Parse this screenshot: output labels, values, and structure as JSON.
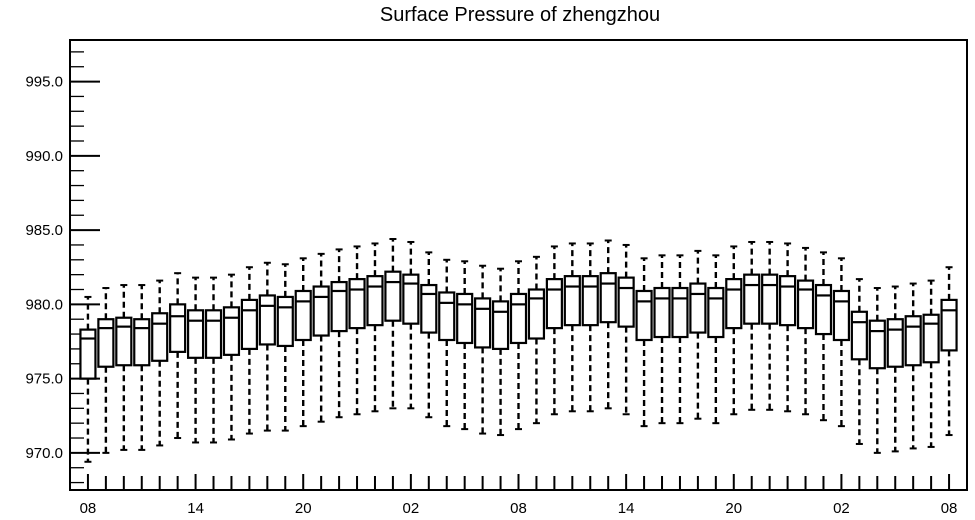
{
  "chart_data": {
    "type": "boxplot",
    "title": "Surface Pressure of zhengzhou",
    "xlabel": "",
    "ylabel": "",
    "ylim": [
      967.5,
      997.8
    ],
    "y_ticks": [
      "970.0",
      "975.0",
      "980.0",
      "985.0",
      "990.0",
      "995.0"
    ],
    "y_tick_values": [
      970,
      975,
      980,
      985,
      990,
      995
    ],
    "x_ticks": [
      "08",
      "14",
      "20",
      "02",
      "08",
      "14",
      "20",
      "02",
      "08"
    ],
    "x_tick_positions": [
      0,
      6,
      12,
      18,
      24,
      30,
      36,
      42,
      48
    ],
    "x_range": [
      -1.0,
      49.0
    ],
    "grid": false,
    "boxes": [
      {
        "x": 0,
        "min": 969.4,
        "q1": 975.0,
        "median": 977.7,
        "q3": 978.3,
        "max": 980.5
      },
      {
        "x": 1,
        "min": 970.0,
        "q1": 975.8,
        "median": 978.4,
        "q3": 979.0,
        "max": 981.1
      },
      {
        "x": 2,
        "min": 970.2,
        "q1": 975.9,
        "median": 978.5,
        "q3": 979.1,
        "max": 981.3
      },
      {
        "x": 3,
        "min": 970.2,
        "q1": 975.9,
        "median": 978.4,
        "q3": 979.0,
        "max": 981.3
      },
      {
        "x": 4,
        "min": 970.5,
        "q1": 976.2,
        "median": 978.7,
        "q3": 979.4,
        "max": 981.6
      },
      {
        "x": 5,
        "min": 971.0,
        "q1": 976.8,
        "median": 979.2,
        "q3": 980.0,
        "max": 982.1
      },
      {
        "x": 6,
        "min": 970.7,
        "q1": 976.4,
        "median": 978.9,
        "q3": 979.6,
        "max": 981.8
      },
      {
        "x": 7,
        "min": 970.7,
        "q1": 976.4,
        "median": 978.9,
        "q3": 979.6,
        "max": 981.8
      },
      {
        "x": 8,
        "min": 970.9,
        "q1": 976.6,
        "median": 979.1,
        "q3": 979.8,
        "max": 982.0
      },
      {
        "x": 9,
        "min": 971.3,
        "q1": 977.0,
        "median": 979.6,
        "q3": 980.3,
        "max": 982.5
      },
      {
        "x": 10,
        "min": 971.5,
        "q1": 977.3,
        "median": 979.9,
        "q3": 980.6,
        "max": 982.8
      },
      {
        "x": 11,
        "min": 971.5,
        "q1": 977.2,
        "median": 979.8,
        "q3": 980.5,
        "max": 982.7
      },
      {
        "x": 12,
        "min": 971.8,
        "q1": 977.6,
        "median": 980.2,
        "q3": 980.9,
        "max": 983.1
      },
      {
        "x": 13,
        "min": 972.1,
        "q1": 977.9,
        "median": 980.5,
        "q3": 981.2,
        "max": 983.4
      },
      {
        "x": 14,
        "min": 972.4,
        "q1": 978.2,
        "median": 980.9,
        "q3": 981.5,
        "max": 983.7
      },
      {
        "x": 15,
        "min": 972.6,
        "q1": 978.4,
        "median": 981.0,
        "q3": 981.7,
        "max": 983.9
      },
      {
        "x": 16,
        "min": 972.8,
        "q1": 978.6,
        "median": 981.2,
        "q3": 981.9,
        "max": 984.1
      },
      {
        "x": 17,
        "min": 973.0,
        "q1": 978.9,
        "median": 981.5,
        "q3": 982.2,
        "max": 984.4
      },
      {
        "x": 18,
        "min": 973.0,
        "q1": 978.7,
        "median": 981.4,
        "q3": 982.0,
        "max": 984.2
      },
      {
        "x": 19,
        "min": 972.4,
        "q1": 978.1,
        "median": 980.7,
        "q3": 981.3,
        "max": 983.5
      },
      {
        "x": 20,
        "min": 971.8,
        "q1": 977.6,
        "median": 980.1,
        "q3": 980.8,
        "max": 983.0
      },
      {
        "x": 21,
        "min": 971.6,
        "q1": 977.4,
        "median": 980.0,
        "q3": 980.7,
        "max": 982.9
      },
      {
        "x": 22,
        "min": 971.3,
        "q1": 977.1,
        "median": 979.7,
        "q3": 980.4,
        "max": 982.6
      },
      {
        "x": 23,
        "min": 971.2,
        "q1": 977.0,
        "median": 979.5,
        "q3": 980.2,
        "max": 982.4
      },
      {
        "x": 24,
        "min": 971.6,
        "q1": 977.4,
        "median": 980.0,
        "q3": 980.7,
        "max": 982.9
      },
      {
        "x": 25,
        "min": 972.0,
        "q1": 977.7,
        "median": 980.4,
        "q3": 981.0,
        "max": 983.2
      },
      {
        "x": 26,
        "min": 972.6,
        "q1": 978.4,
        "median": 981.0,
        "q3": 981.7,
        "max": 983.9
      },
      {
        "x": 27,
        "min": 972.8,
        "q1": 978.6,
        "median": 981.2,
        "q3": 981.9,
        "max": 984.1
      },
      {
        "x": 28,
        "min": 972.8,
        "q1": 978.6,
        "median": 981.2,
        "q3": 981.9,
        "max": 984.1
      },
      {
        "x": 29,
        "min": 973.0,
        "q1": 978.8,
        "median": 981.4,
        "q3": 982.1,
        "max": 984.3
      },
      {
        "x": 30,
        "min": 972.6,
        "q1": 978.5,
        "median": 981.1,
        "q3": 981.8,
        "max": 984.0
      },
      {
        "x": 31,
        "min": 971.8,
        "q1": 977.6,
        "median": 980.2,
        "q3": 980.9,
        "max": 983.1
      },
      {
        "x": 32,
        "min": 972.0,
        "q1": 977.8,
        "median": 980.4,
        "q3": 981.1,
        "max": 983.3
      },
      {
        "x": 33,
        "min": 972.0,
        "q1": 977.8,
        "median": 980.4,
        "q3": 981.1,
        "max": 983.3
      },
      {
        "x": 34,
        "min": 972.3,
        "q1": 978.1,
        "median": 980.7,
        "q3": 981.4,
        "max": 983.6
      },
      {
        "x": 35,
        "min": 972.0,
        "q1": 977.8,
        "median": 980.4,
        "q3": 981.1,
        "max": 983.3
      },
      {
        "x": 36,
        "min": 972.6,
        "q1": 978.4,
        "median": 981.0,
        "q3": 981.7,
        "max": 983.9
      },
      {
        "x": 37,
        "min": 972.9,
        "q1": 978.7,
        "median": 981.3,
        "q3": 982.0,
        "max": 984.2
      },
      {
        "x": 38,
        "min": 972.9,
        "q1": 978.7,
        "median": 981.3,
        "q3": 982.0,
        "max": 984.2
      },
      {
        "x": 39,
        "min": 972.8,
        "q1": 978.6,
        "median": 981.2,
        "q3": 981.9,
        "max": 984.1
      },
      {
        "x": 40,
        "min": 972.6,
        "q1": 978.4,
        "median": 981.0,
        "q3": 981.6,
        "max": 983.8
      },
      {
        "x": 41,
        "min": 972.2,
        "q1": 978.0,
        "median": 980.6,
        "q3": 981.3,
        "max": 983.5
      },
      {
        "x": 42,
        "min": 971.8,
        "q1": 977.6,
        "median": 980.2,
        "q3": 980.9,
        "max": 983.1
      },
      {
        "x": 43,
        "min": 970.6,
        "q1": 976.3,
        "median": 978.8,
        "q3": 979.5,
        "max": 981.7
      },
      {
        "x": 44,
        "min": 970.0,
        "q1": 975.7,
        "median": 978.2,
        "q3": 978.9,
        "max": 981.1
      },
      {
        "x": 45,
        "min": 970.1,
        "q1": 975.8,
        "median": 978.3,
        "q3": 979.0,
        "max": 981.2
      },
      {
        "x": 46,
        "min": 970.3,
        "q1": 975.9,
        "median": 978.5,
        "q3": 979.2,
        "max": 981.4
      },
      {
        "x": 47,
        "min": 970.4,
        "q1": 976.1,
        "median": 978.7,
        "q3": 979.3,
        "max": 981.6
      },
      {
        "x": 48,
        "min": 971.2,
        "q1": 976.9,
        "median": 979.6,
        "q3": 980.3,
        "max": 982.5
      }
    ]
  }
}
